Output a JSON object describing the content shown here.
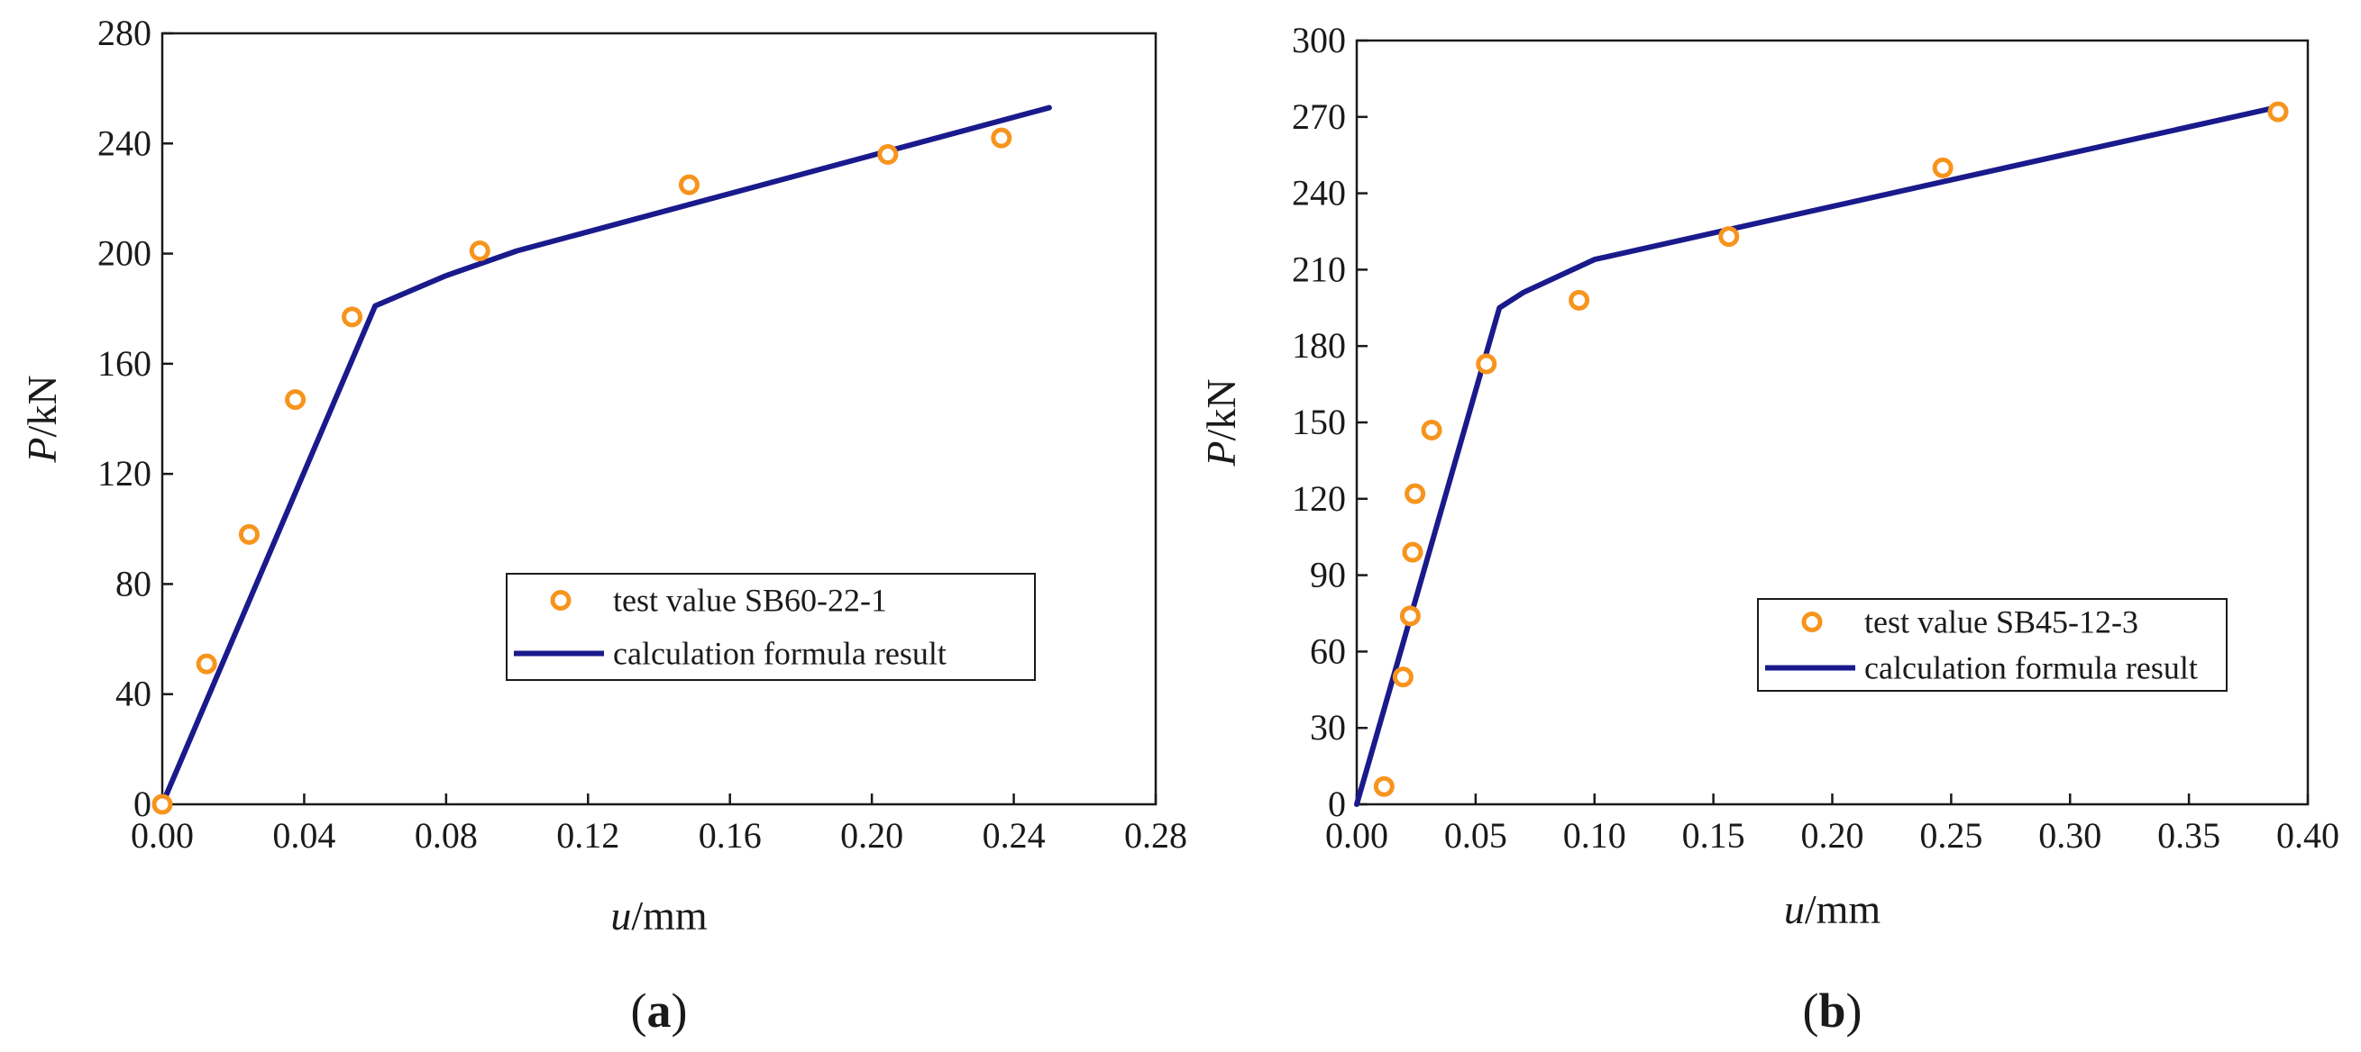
{
  "chart_data": [
    {
      "type": "line",
      "panel_label": "(a)",
      "panel_letter": "a",
      "title": "",
      "xlabel_var": "u",
      "xlabel_unit": "/mm",
      "ylabel_var": "P",
      "ylabel_unit": "/kN",
      "xlim": [
        0,
        0.28
      ],
      "ylim": [
        0,
        280
      ],
      "xticks": [
        "0.00",
        "0.04",
        "0.08",
        "0.12",
        "0.16",
        "0.20",
        "0.24",
        "0.28"
      ],
      "yticks": [
        "0",
        "40",
        "80",
        "120",
        "160",
        "200",
        "240",
        "280"
      ],
      "legend_position": "bottom-right",
      "series": [
        {
          "name": "test value SB60-22-1",
          "kind": "scatter",
          "color": "#f7941d",
          "x": [
            0.0,
            0.0125,
            0.0245,
            0.0375,
            0.0535,
            0.0895,
            0.1485,
            0.2045,
            0.2365
          ],
          "y": [
            0,
            51,
            98,
            147,
            177,
            201,
            225,
            236,
            242
          ]
        },
        {
          "name": "calculation formula result",
          "kind": "line",
          "color": "#1a1a8c",
          "x": [
            0.0,
            0.06,
            0.08,
            0.1,
            0.25
          ],
          "y": [
            0,
            181,
            192,
            201,
            253
          ]
        }
      ]
    },
    {
      "type": "line",
      "panel_label": "(b)",
      "panel_letter": "b",
      "title": "",
      "xlabel_var": "u",
      "xlabel_unit": "/mm",
      "ylabel_var": "P",
      "ylabel_unit": "/kN",
      "xlim": [
        0,
        0.4
      ],
      "ylim": [
        0,
        300
      ],
      "xticks": [
        "0.00",
        "0.05",
        "0.10",
        "0.15",
        "0.20",
        "0.25",
        "0.30",
        "0.35",
        "0.40"
      ],
      "yticks": [
        "0",
        "30",
        "60",
        "90",
        "120",
        "150",
        "180",
        "210",
        "240",
        "270",
        "300"
      ],
      "legend_position": "bottom-right",
      "series": [
        {
          "name": "test value SB45-12-3",
          "kind": "scatter",
          "color": "#f7941d",
          "x": [
            0.0115,
            0.0195,
            0.0225,
            0.0235,
            0.0245,
            0.0315,
            0.0545,
            0.0935,
            0.1565,
            0.2465,
            0.3875
          ],
          "y": [
            7,
            50,
            74,
            99,
            122,
            147,
            173,
            198,
            223,
            250,
            272
          ]
        },
        {
          "name": "calculation formula result",
          "kind": "line",
          "color": "#1a1a8c",
          "x": [
            0.0,
            0.06,
            0.07,
            0.1,
            0.388
          ],
          "y": [
            0,
            195,
            201,
            214,
            274
          ]
        }
      ]
    }
  ]
}
